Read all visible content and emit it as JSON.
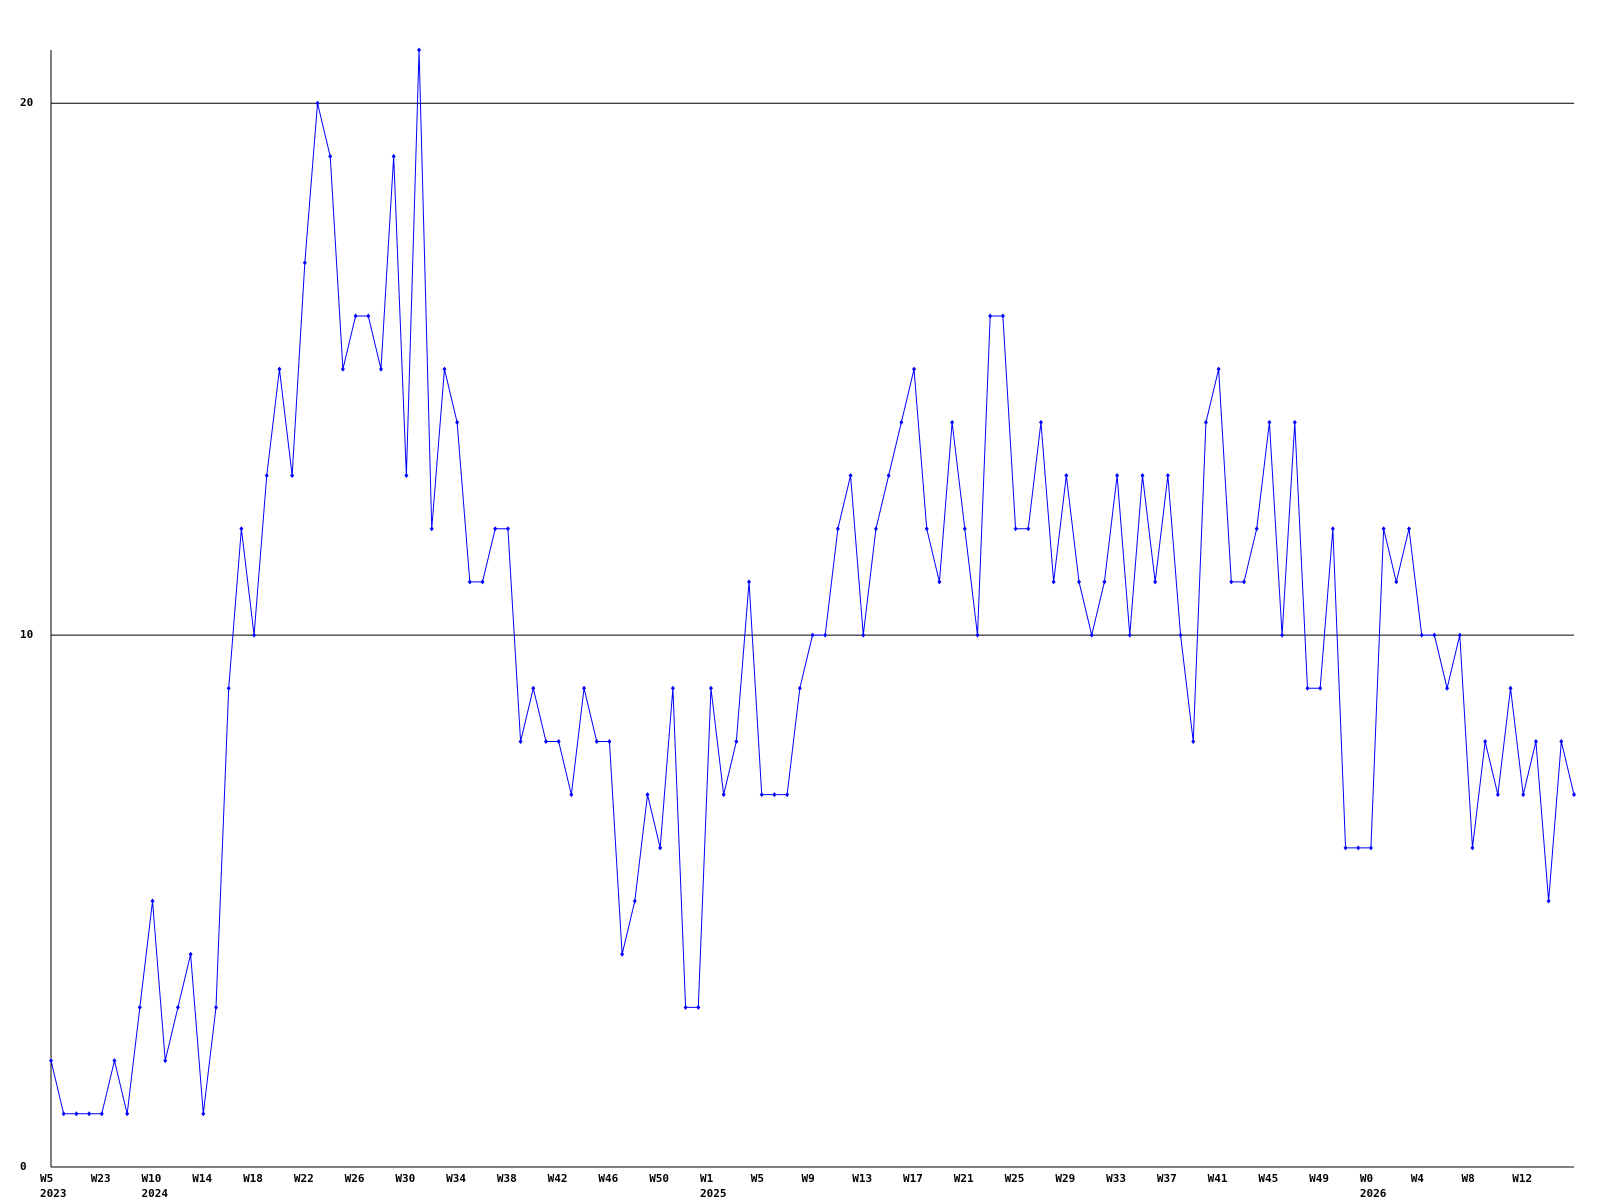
{
  "chart_data": {
    "type": "line",
    "categories": [
      "W5",
      null,
      null,
      null,
      "W23",
      null,
      null,
      null,
      "W10",
      null,
      null,
      null,
      "W14",
      null,
      null,
      null,
      "W18",
      null,
      null,
      null,
      "W22",
      null,
      null,
      null,
      "W26",
      null,
      null,
      null,
      "W30",
      null,
      null,
      null,
      "W34",
      null,
      null,
      null,
      "W38",
      null,
      null,
      null,
      "W42",
      null,
      null,
      null,
      "W46",
      null,
      null,
      null,
      "W50",
      null,
      null,
      null,
      "W1",
      null,
      null,
      null,
      "W5",
      null,
      null,
      null,
      "W9",
      null,
      null,
      null,
      "W13",
      null,
      null,
      null,
      "W17",
      null,
      null,
      null,
      "W21",
      null,
      null,
      null,
      "W25",
      null,
      null,
      null,
      "W29",
      null,
      null,
      null,
      "W33",
      null,
      null,
      null,
      "W37",
      null,
      null,
      null,
      "W41",
      null,
      null,
      null,
      "W45",
      null,
      null,
      null,
      "W49",
      null,
      null,
      null,
      "W0",
      null,
      null,
      null,
      "W4",
      null,
      null,
      null,
      "W8",
      null,
      null,
      null,
      "W12",
      null,
      null,
      null,
      null
    ],
    "category_years": [
      "2023",
      null,
      null,
      null,
      null,
      null,
      null,
      null,
      "2024",
      null,
      null,
      null,
      null,
      null,
      null,
      null,
      null,
      null,
      null,
      null,
      null,
      null,
      null,
      null,
      null,
      null,
      null,
      null,
      null,
      null,
      null,
      null,
      null,
      null,
      null,
      null,
      null,
      null,
      null,
      null,
      null,
      null,
      null,
      null,
      null,
      null,
      null,
      null,
      null,
      null,
      null,
      null,
      "2025",
      null,
      null,
      null,
      null,
      null,
      null,
      null,
      null,
      null,
      null,
      null,
      null,
      null,
      null,
      null,
      null,
      null,
      null,
      null,
      null,
      null,
      null,
      null,
      null,
      null,
      null,
      null,
      null,
      null,
      null,
      null,
      null,
      null,
      null,
      null,
      null,
      null,
      null,
      null,
      null,
      null,
      null,
      null,
      null,
      null,
      null,
      null,
      null,
      null,
      null,
      null,
      "2026",
      null,
      null,
      null,
      null,
      null,
      null,
      null,
      null,
      null,
      null,
      null,
      null,
      null,
      null,
      null,
      null
    ],
    "series": [
      {
        "color": "#0000ff",
        "values": [
          2,
          1,
          1,
          1,
          1,
          2,
          1,
          3,
          5,
          2,
          3,
          4,
          1,
          3,
          9,
          12,
          10,
          13,
          15,
          13,
          17,
          20,
          19,
          15,
          16,
          16,
          15,
          19,
          13,
          21,
          12,
          15,
          14,
          11,
          11,
          12,
          12,
          8,
          9,
          8,
          8,
          7,
          9,
          8,
          8,
          4,
          5,
          7,
          6,
          9,
          3,
          3,
          9,
          7,
          8,
          11,
          7,
          7,
          7,
          9,
          10,
          10,
          12,
          13,
          10,
          12,
          13,
          14,
          15,
          12,
          11,
          14,
          12,
          10,
          16,
          16,
          12,
          12,
          14,
          11,
          13,
          11,
          10,
          11,
          13,
          10,
          13,
          11,
          13,
          10,
          8,
          14,
          15,
          11,
          11,
          12,
          14,
          10,
          14,
          9,
          9,
          12,
          6,
          6,
          6,
          12,
          11,
          12,
          10,
          10,
          9,
          10,
          6,
          8,
          7,
          9,
          7,
          8,
          5,
          8,
          7
        ]
      }
    ],
    "ylim": [
      0,
      21
    ],
    "yticks": [
      0,
      10,
      20
    ],
    "grid": true
  }
}
